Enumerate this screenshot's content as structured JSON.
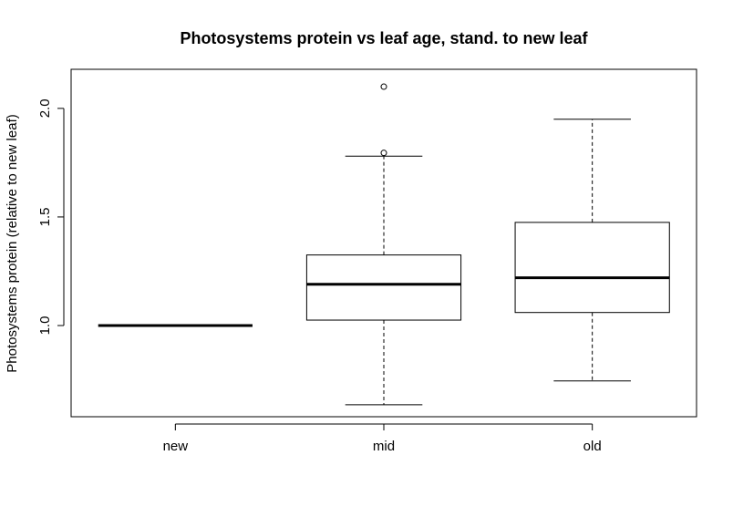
{
  "chart_data": {
    "type": "boxplot",
    "title": "Photosystems protein vs leaf age, stand. to new leaf",
    "xlabel": "",
    "ylabel": "Photosystems protein (relative to new leaf)",
    "categories": [
      "new",
      "mid",
      "old"
    ],
    "yticks": [
      "1.0",
      "1.5",
      "2.0"
    ],
    "ytick_values": [
      1.0,
      1.5,
      2.0
    ],
    "ylim": [
      0.58,
      2.18
    ],
    "grid": false,
    "boxes": [
      {
        "category": "new",
        "whisker_low": 1.0,
        "q1": 1.0,
        "median": 1.0,
        "q3": 1.0,
        "whisker_high": 1.0,
        "outliers": []
      },
      {
        "category": "mid",
        "whisker_low": 0.635,
        "q1": 1.025,
        "median": 1.19,
        "q3": 1.325,
        "whisker_high": 1.78,
        "outliers": [
          1.795,
          2.1
        ]
      },
      {
        "category": "old",
        "whisker_low": 0.745,
        "q1": 1.06,
        "median": 1.22,
        "q3": 1.475,
        "whisker_high": 1.95,
        "outliers": []
      }
    ]
  }
}
